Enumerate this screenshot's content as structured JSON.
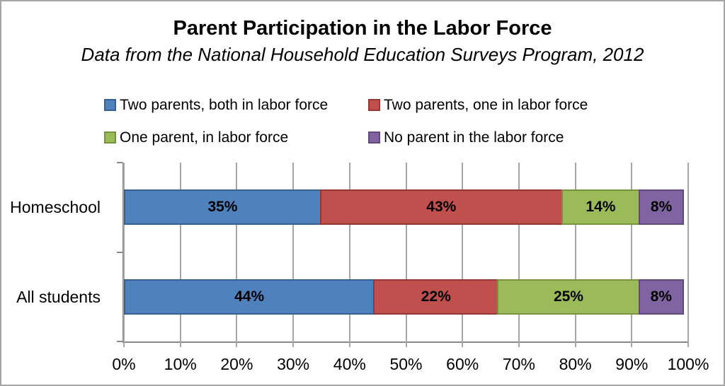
{
  "window": {
    "background": "#ffffff",
    "border_color": "#a6a6a6"
  },
  "title": "Parent Participation in the Labor Force",
  "subtitle": "Data from the National Household Education Surveys Program, 2012",
  "chart_data": {
    "type": "bar",
    "orientation": "horizontal",
    "stacked": true,
    "normalized_to_100": true,
    "grid": true,
    "legend_position": "top",
    "categories": [
      "Homeschool",
      "All students"
    ],
    "series": [
      {
        "name": "Two parents, both in labor force",
        "color": "#4f81bd",
        "border_color": "#366092",
        "values": [
          35,
          44
        ]
      },
      {
        "name": "Two parents, one in labor force",
        "color": "#c0504d",
        "border_color": "#953735",
        "values": [
          43,
          22
        ]
      },
      {
        "name": "One parent, in labor force",
        "color": "#9bbb59",
        "border_color": "#77933c",
        "values": [
          14,
          25
        ]
      },
      {
        "name": "No parent in the labor force",
        "color": "#8064a2",
        "border_color": "#604a7b",
        "values": [
          8,
          8
        ]
      }
    ],
    "data_labels": [
      [
        "35%",
        "43%",
        "14%",
        "8%"
      ],
      [
        "44%",
        "22%",
        "25%",
        "8%"
      ]
    ],
    "x_ticks": [
      "0%",
      "10%",
      "20%",
      "30%",
      "40%",
      "50%",
      "60%",
      "70%",
      "80%",
      "90%",
      "100%"
    ],
    "xlim": [
      0,
      100
    ],
    "axis_color": "#898989",
    "gridline_color": "#a6a6a6",
    "label_color": "#000000"
  }
}
